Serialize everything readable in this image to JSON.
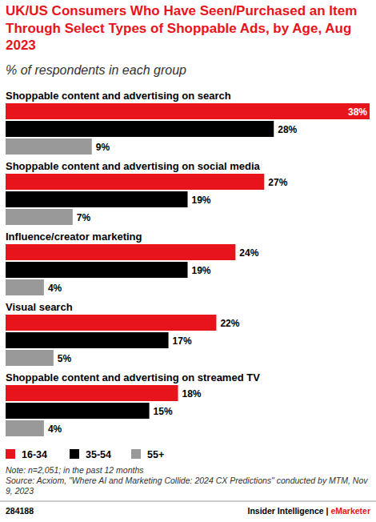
{
  "chart_data": {
    "type": "bar",
    "orientation": "horizontal",
    "title": "UK/US Consumers Who Have Seen/Purchased an Item Through Select Types of Shoppable Ads, by Age, Aug 2023",
    "subtitle": "% of respondents in each group",
    "categories": [
      "Shoppable content and advertising on search",
      "Shoppable content and advertising on social media",
      "Influence/creator marketing",
      "Visual search",
      "Shoppable content and advertising on streamed TV"
    ],
    "series": [
      {
        "name": "16-34",
        "color": "#e8141c",
        "values": [
          38,
          27,
          24,
          22,
          18
        ],
        "value_labels": [
          "38%",
          "27%",
          "24%",
          "22%",
          "18%"
        ]
      },
      {
        "name": "35-54",
        "color": "#000000",
        "values": [
          28,
          19,
          19,
          17,
          15
        ],
        "value_labels": [
          "28%",
          "19%",
          "19%",
          "17%",
          "15%"
        ]
      },
      {
        "name": "55+",
        "color": "#999999",
        "values": [
          9,
          7,
          4,
          5,
          4
        ],
        "value_labels": [
          "9%",
          "7%",
          "4%",
          "5%",
          "4%"
        ]
      }
    ],
    "xlim": [
      0,
      38
    ],
    "data_labels": true,
    "tick_labels": false,
    "grid": false,
    "legend": "bottom-left",
    "annotations": [
      "Note: n=2,051; in the past 12 months",
      "Source: Acxiom, \"Where AI and Marketing Collide: 2024 CX Predictions\" conducted by MTM, Nov 9, 2023"
    ],
    "chart_id": "284188",
    "footer": "Insider Intelligence | eMarketer"
  }
}
